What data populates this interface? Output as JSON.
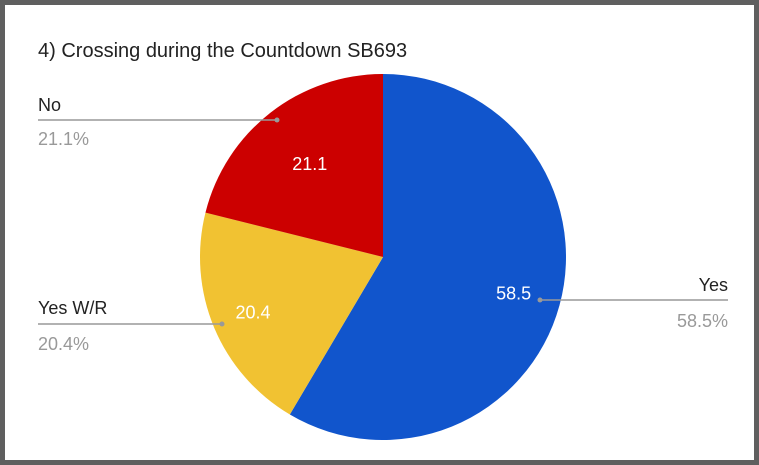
{
  "chart_data": {
    "type": "pie",
    "title": "4) Crossing during the Countdown SB693",
    "slices": [
      {
        "label": "Yes",
        "value": 58.5,
        "percent_label": "58.5%",
        "value_label": "58.5",
        "color": "#1155cc"
      },
      {
        "label": "Yes W/R",
        "value": 20.4,
        "percent_label": "20.4%",
        "value_label": "20.4",
        "color": "#f1c232"
      },
      {
        "label": "No",
        "value": 21.1,
        "percent_label": "21.1%",
        "value_label": "21.1",
        "color": "#cc0000"
      }
    ],
    "legend": "none",
    "colors": {
      "leader_line": "#999999",
      "callout_percent": "#999999",
      "callout_name": "#222222",
      "slice_label": "#ffffff"
    }
  }
}
